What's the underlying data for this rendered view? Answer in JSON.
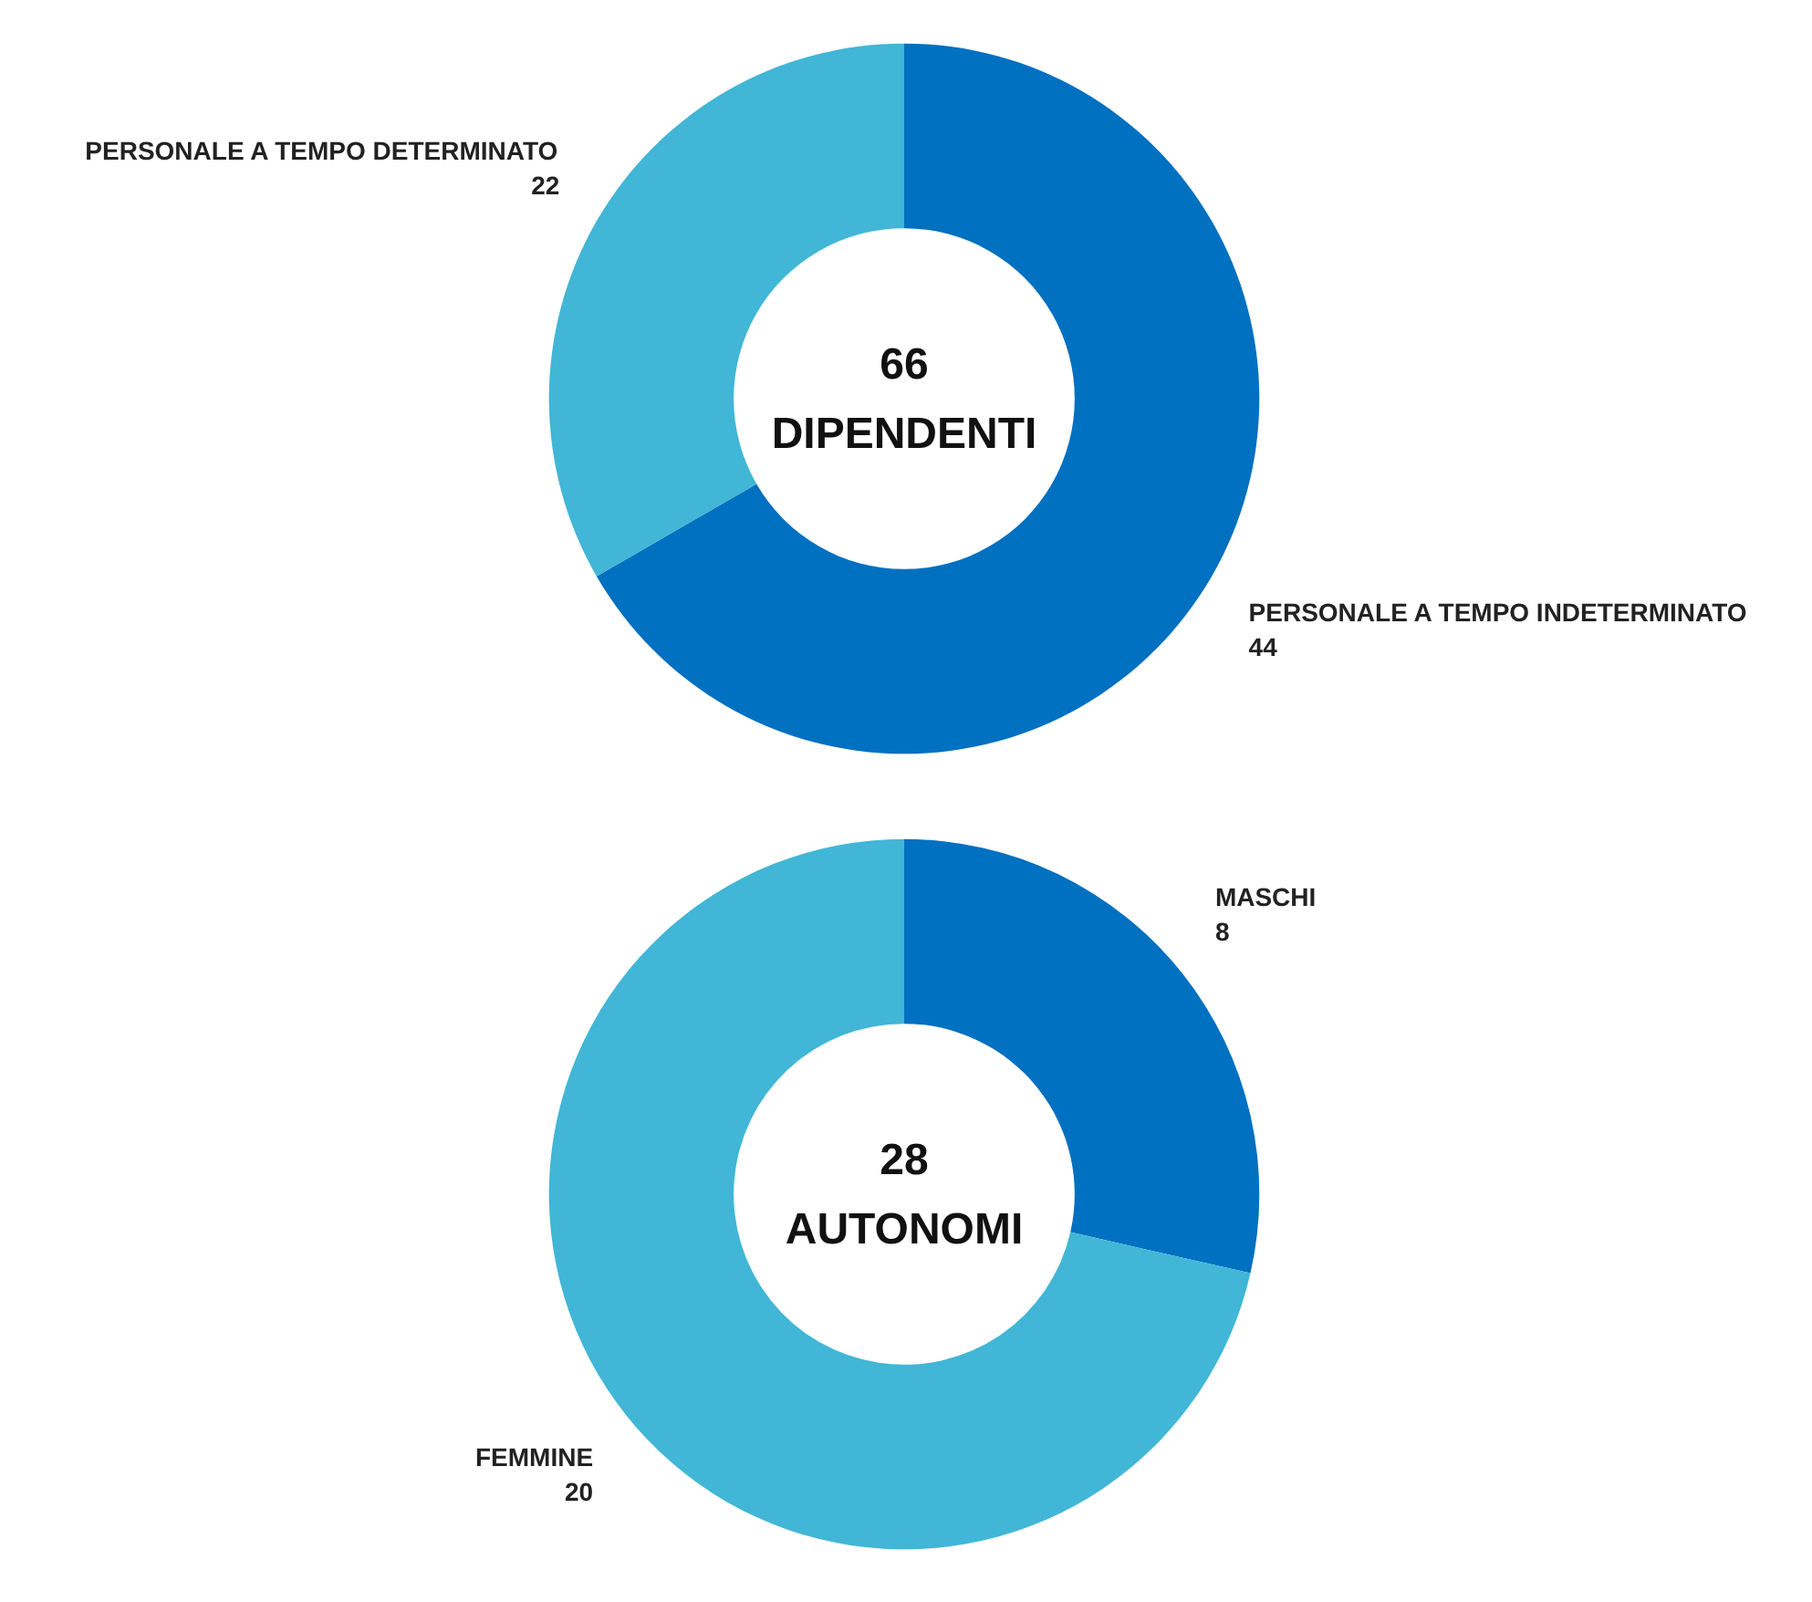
{
  "chart_data": [
    {
      "type": "donut",
      "categories": [
        "PERSONALE A TEMPO INDETERMINATO",
        "PERSONALE A TEMPO DETERMINATO"
      ],
      "values": [
        44,
        22
      ],
      "colors": [
        "#0070c0",
        "#41b6d6"
      ],
      "data_labels": true,
      "annotations": [
        "66",
        "DIPENDENTI"
      ]
    },
    {
      "type": "donut",
      "categories": [
        "MASCHI",
        "FEMMINE"
      ],
      "values": [
        8,
        20
      ],
      "colors": [
        "#0070c0",
        "#41b6d6"
      ],
      "data_labels": true,
      "annotations": [
        "28",
        "AUTONOMI"
      ]
    }
  ]
}
